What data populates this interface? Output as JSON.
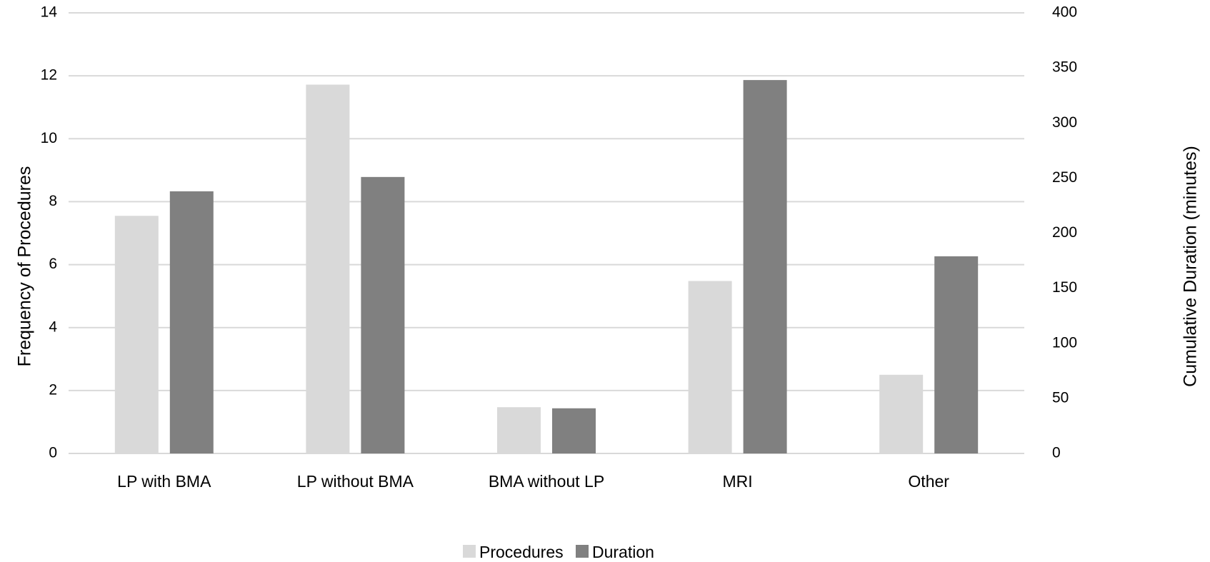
{
  "chart_data": {
    "type": "bar",
    "categories": [
      "LP with BMA",
      "LP without BMA",
      "BMA without LP",
      "MRI",
      "Other"
    ],
    "series": [
      {
        "name": "Procedures",
        "axis": "left",
        "color": "#d9d9d9",
        "values": [
          7.55,
          11.72,
          1.47,
          5.48,
          2.5
        ]
      },
      {
        "name": "Duration",
        "axis": "right",
        "color": "#808080",
        "values": [
          238,
          251,
          41,
          339,
          179
        ]
      }
    ],
    "y_left": {
      "label": "Frequency of Procedures",
      "min": 0,
      "max": 14,
      "ticks": [
        "0",
        "2",
        "4",
        "6",
        "8",
        "10",
        "12",
        "14"
      ]
    },
    "y_right": {
      "label": "Cumulative Duration (minutes)",
      "min": 0,
      "max": 400,
      "ticks": [
        "0",
        "50",
        "100",
        "150",
        "200",
        "250",
        "300",
        "350",
        "400"
      ]
    },
    "grid": true,
    "legend": "bottom-center",
    "gridline_color": "#d9d9d9"
  }
}
